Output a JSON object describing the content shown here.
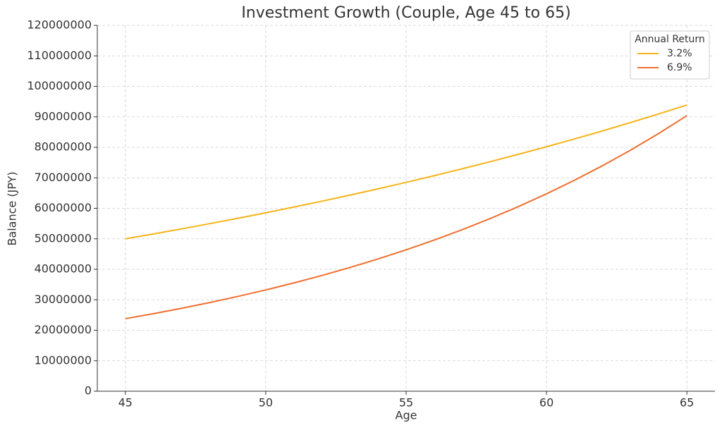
{
  "chart_data": {
    "type": "line",
    "title": "Investment Growth (Couple, Age 45 to 65)",
    "x_label": "Age",
    "y_label": "Balance (JPY)",
    "x": [
      45,
      46,
      47,
      48,
      49,
      50,
      51,
      52,
      53,
      54,
      55,
      56,
      57,
      58,
      59,
      60,
      61,
      62,
      63,
      64,
      65
    ],
    "series": [
      {
        "name": "3.2%",
        "color": "#f7b319",
        "values": [
          50000000,
          51600000,
          53250000,
          54960000,
          56710000,
          58530000,
          60400000,
          62330000,
          64330000,
          66390000,
          68510000,
          70700000,
          72970000,
          75300000,
          77710000,
          80200000,
          82760000,
          85410000,
          88150000,
          90970000,
          93880000
        ]
      },
      {
        "name": "6.9%",
        "color": "#ef6f2e",
        "values": [
          23800000,
          25440000,
          27200000,
          29070000,
          31080000,
          33220000,
          35520000,
          37970000,
          40590000,
          43390000,
          46380000,
          49590000,
          53000000,
          56660000,
          60570000,
          64750000,
          69220000,
          74000000,
          79100000,
          84560000,
          90390000
        ]
      }
    ],
    "legend_title": "Annual Return",
    "legend": "upper right",
    "xlim": [
      44,
      66
    ],
    "xticks": [
      45,
      50,
      55,
      60,
      65
    ],
    "ylim": [
      0,
      120000000
    ],
    "yticks": [
      0,
      10000000,
      20000000,
      30000000,
      40000000,
      50000000,
      60000000,
      70000000,
      80000000,
      90000000,
      100000000,
      110000000,
      120000000
    ],
    "grid": true
  }
}
